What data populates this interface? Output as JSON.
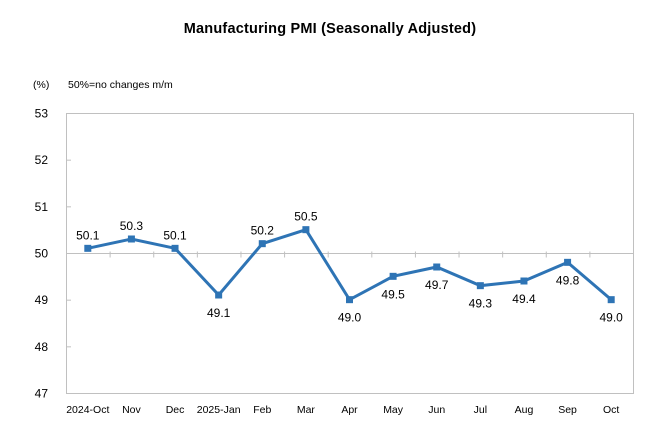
{
  "title": "Manufacturing PMI (Seasonally Adjusted)",
  "unit_label": "(%)",
  "note": "50%=no changes m/m",
  "colors": {
    "line": "#2E74B5",
    "axis": "#C0C0C0",
    "text": "#000000"
  },
  "chart_data": {
    "type": "line",
    "title": "Manufacturing PMI (Seasonally Adjusted)",
    "subtitle": "50%=no changes m/m",
    "xlabel": "",
    "ylabel": "(%)",
    "categories": [
      "2024-Oct",
      "Nov",
      "Dec",
      "2025-Jan",
      "Feb",
      "Mar",
      "Apr",
      "May",
      "Jun",
      "Jul",
      "Aug",
      "Sep",
      "Oct"
    ],
    "values": [
      50.1,
      50.3,
      50.1,
      49.1,
      50.2,
      50.5,
      49.0,
      49.5,
      49.7,
      49.3,
      49.4,
      49.8,
      49.0
    ],
    "ylim": [
      47,
      53
    ],
    "yticks": [
      47,
      48,
      49,
      50,
      51,
      52,
      53
    ],
    "reference_line": 50,
    "grid": false,
    "legend": false,
    "marker": "square",
    "data_labels": true,
    "data_label_decimals": 1
  }
}
